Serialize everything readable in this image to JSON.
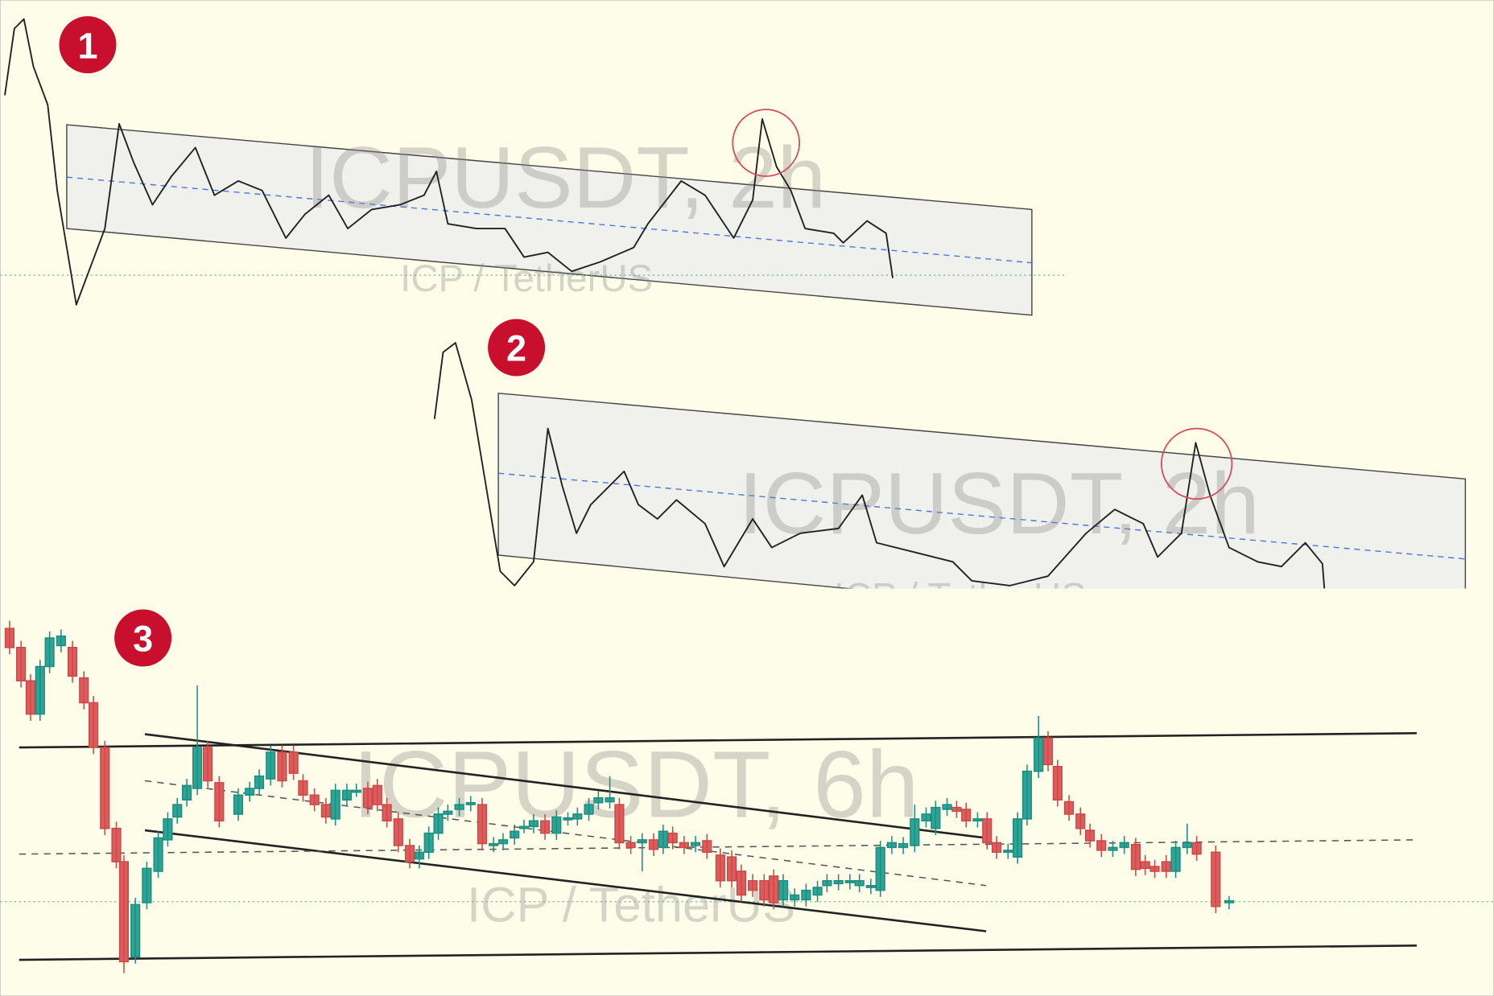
{
  "panels": [
    {
      "label": "1",
      "watermark": {
        "title": "ICPUSDT, 2h",
        "subtitle": "ICP / TetherUS"
      }
    },
    {
      "label": "2",
      "watermark": {
        "title": "ICPUSDT, 2h",
        "subtitle": "ICP / TetherUS"
      }
    },
    {
      "label": "3",
      "watermark": {
        "title": "ICPUSDT, 6h",
        "subtitle": "ICP / TetherUS"
      }
    }
  ]
}
